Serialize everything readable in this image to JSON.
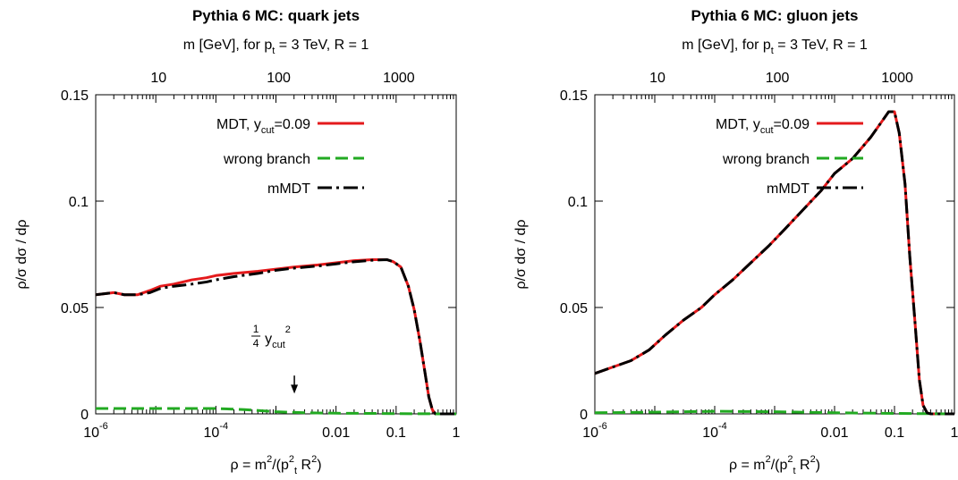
{
  "chart_data": [
    {
      "type": "line",
      "title": "Pythia 6 MC: quark jets",
      "top_axis_label": "m [GeV], for p_t = 3 TeV, R = 1",
      "top_axis_label_parts": {
        "pre": "m [GeV], for p",
        "sub": "t",
        "post": " = 3 TeV, R = 1"
      },
      "top_ticks": [
        10,
        100,
        1000
      ],
      "top_tick_labels": [
        "10",
        "100",
        "1000"
      ],
      "xlabel": "ρ = m²/(p_t² R²)",
      "xlabel_parts": {
        "a": "ρ = m",
        "b": "/(p",
        "c": "t",
        "d": " R",
        "e": ")"
      },
      "ylabel": "ρ/σ dσ / dρ",
      "x_scale": "log",
      "xlim": [
        1e-06,
        1
      ],
      "ylim": [
        0,
        0.15
      ],
      "x_ticks": [
        {
          "v": 1e-06,
          "base": "10",
          "exp": "-6"
        },
        {
          "v": 0.0001,
          "base": "10",
          "exp": "-4"
        },
        {
          "v": 0.01,
          "base": "0.01"
        },
        {
          "v": 0.1,
          "base": "0.1"
        },
        {
          "v": 1,
          "base": "1"
        }
      ],
      "y_ticks": [
        {
          "v": 0,
          "label": "0"
        },
        {
          "v": 0.05,
          "label": "0.05"
        },
        {
          "v": 0.1,
          "label": "0.1"
        },
        {
          "v": 0.15,
          "label": "0.15"
        }
      ],
      "legend_position": "top-left",
      "series": [
        {
          "name": "MDT, y_cut=0.09",
          "legend_parts": {
            "pre": "MDT, y",
            "sub": "cut",
            "post": "=0.09"
          },
          "color": "#e41a1c",
          "dash": "solid",
          "x": [
            1e-06,
            2e-06,
            3e-06,
            5e-06,
            8e-06,
            1.2e-05,
            2e-05,
            4e-05,
            7e-05,
            0.0001,
            0.0002,
            0.0005,
            0.001,
            0.002,
            0.005,
            0.01,
            0.02,
            0.04,
            0.07,
            0.09,
            0.12,
            0.16,
            0.2,
            0.25,
            0.3,
            0.35,
            0.4,
            0.45,
            0.5,
            0.7,
            1
          ],
          "y": [
            0.056,
            0.057,
            0.056,
            0.056,
            0.058,
            0.06,
            0.061,
            0.063,
            0.064,
            0.065,
            0.066,
            0.067,
            0.068,
            0.069,
            0.07,
            0.071,
            0.072,
            0.0725,
            0.0725,
            0.0715,
            0.069,
            0.06,
            0.049,
            0.034,
            0.02,
            0.008,
            0.002,
            0,
            0,
            0,
            0
          ]
        },
        {
          "name": "wrong branch",
          "color": "#22aa22",
          "dash": "dash",
          "x": [
            1e-06,
            1e-05,
            0.0001,
            0.0003,
            0.001,
            0.003,
            0.01,
            0.05,
            0.1,
            0.3,
            0.5,
            1
          ],
          "y": [
            0.0025,
            0.0025,
            0.0025,
            0.002,
            0.001,
            0.0005,
            0.0003,
            0.0002,
            0.0001,
            5e-05,
            0,
            0
          ]
        },
        {
          "name": "mMDT",
          "color": "#000000",
          "dash": "dashdot",
          "x": [
            1e-06,
            2e-06,
            3e-06,
            5e-06,
            8e-06,
            1.2e-05,
            2e-05,
            4e-05,
            7e-05,
            0.0001,
            0.0002,
            0.0005,
            0.001,
            0.002,
            0.005,
            0.01,
            0.02,
            0.04,
            0.07,
            0.09,
            0.12,
            0.16,
            0.2,
            0.25,
            0.3,
            0.35,
            0.4,
            0.45,
            0.5,
            0.7,
            1
          ],
          "y": [
            0.056,
            0.057,
            0.056,
            0.056,
            0.057,
            0.059,
            0.06,
            0.061,
            0.062,
            0.063,
            0.0645,
            0.066,
            0.0675,
            0.0685,
            0.0695,
            0.0705,
            0.0715,
            0.0722,
            0.0725,
            0.0715,
            0.069,
            0.06,
            0.049,
            0.034,
            0.02,
            0.008,
            0.002,
            0,
            0,
            0,
            0
          ]
        }
      ],
      "annotation": {
        "frac_num": "1",
        "frac_den": "4",
        "text": "y",
        "sub": "cut",
        "sup": "2",
        "x": 0.002025,
        "arrow_top": 0.018,
        "arrow_bottom": 0.0095
      }
    },
    {
      "type": "line",
      "title": "Pythia 6 MC: gluon jets",
      "top_axis_label": "m [GeV], for p_t = 3 TeV, R = 1",
      "top_axis_label_parts": {
        "pre": "m [GeV], for p",
        "sub": "t",
        "post": " = 3 TeV, R = 1"
      },
      "top_ticks": [
        10,
        100,
        1000
      ],
      "top_tick_labels": [
        "10",
        "100",
        "1000"
      ],
      "xlabel": "ρ = m²/(p_t² R²)",
      "xlabel_parts": {
        "a": "ρ = m",
        "b": "/(p",
        "c": "t",
        "d": " R",
        "e": ")"
      },
      "ylabel": "ρ/σ dσ / dρ",
      "x_scale": "log",
      "xlim": [
        1e-06,
        1
      ],
      "ylim": [
        0,
        0.15
      ],
      "x_ticks": [
        {
          "v": 1e-06,
          "base": "10",
          "exp": "-6"
        },
        {
          "v": 0.0001,
          "base": "10",
          "exp": "-4"
        },
        {
          "v": 0.01,
          "base": "0.01"
        },
        {
          "v": 0.1,
          "base": "0.1"
        },
        {
          "v": 1,
          "base": "1"
        }
      ],
      "y_ticks": [
        {
          "v": 0,
          "label": "0"
        },
        {
          "v": 0.05,
          "label": "0.05"
        },
        {
          "v": 0.1,
          "label": "0.1"
        },
        {
          "v": 0.15,
          "label": "0.15"
        }
      ],
      "legend_position": "top-left",
      "series": [
        {
          "name": "MDT, y_cut=0.09",
          "legend_parts": {
            "pre": "MDT, y",
            "sub": "cut",
            "post": "=0.09"
          },
          "color": "#e41a1c",
          "dash": "solid",
          "x": [
            1e-06,
            2e-06,
            4e-06,
            8e-06,
            1.5e-05,
            3e-05,
            6e-05,
            0.0001,
            0.0002,
            0.0004,
            0.0008,
            0.0015,
            0.003,
            0.006,
            0.01,
            0.02,
            0.04,
            0.06,
            0.08,
            0.1,
            0.12,
            0.15,
            0.18,
            0.22,
            0.26,
            0.3,
            0.35,
            0.4,
            0.5,
            1
          ],
          "y": [
            0.019,
            0.022,
            0.025,
            0.03,
            0.037,
            0.044,
            0.05,
            0.056,
            0.063,
            0.071,
            0.079,
            0.087,
            0.096,
            0.105,
            0.113,
            0.12,
            0.13,
            0.137,
            0.142,
            0.142,
            0.132,
            0.108,
            0.074,
            0.043,
            0.016,
            0.004,
            0.0005,
            0,
            0,
            0
          ]
        },
        {
          "name": "wrong branch",
          "color": "#22aa22",
          "dash": "dash",
          "x": [
            1e-06,
            1e-05,
            0.0001,
            0.001,
            0.01,
            0.1,
            0.3,
            1
          ],
          "y": [
            0.0005,
            0.0008,
            0.0012,
            0.001,
            0.0005,
            0.0002,
            0.0001,
            0
          ]
        },
        {
          "name": "mMDT",
          "color": "#000000",
          "dash": "dashdot",
          "x": [
            1e-06,
            2e-06,
            4e-06,
            8e-06,
            1.5e-05,
            3e-05,
            6e-05,
            0.0001,
            0.0002,
            0.0004,
            0.0008,
            0.0015,
            0.003,
            0.006,
            0.01,
            0.02,
            0.04,
            0.06,
            0.08,
            0.1,
            0.12,
            0.15,
            0.18,
            0.22,
            0.26,
            0.3,
            0.35,
            0.4,
            0.5,
            1
          ],
          "y": [
            0.019,
            0.022,
            0.025,
            0.03,
            0.037,
            0.044,
            0.05,
            0.056,
            0.063,
            0.071,
            0.079,
            0.087,
            0.096,
            0.105,
            0.113,
            0.12,
            0.13,
            0.137,
            0.142,
            0.142,
            0.132,
            0.108,
            0.074,
            0.043,
            0.016,
            0.004,
            0.0005,
            0,
            0,
            0
          ]
        }
      ]
    }
  ]
}
